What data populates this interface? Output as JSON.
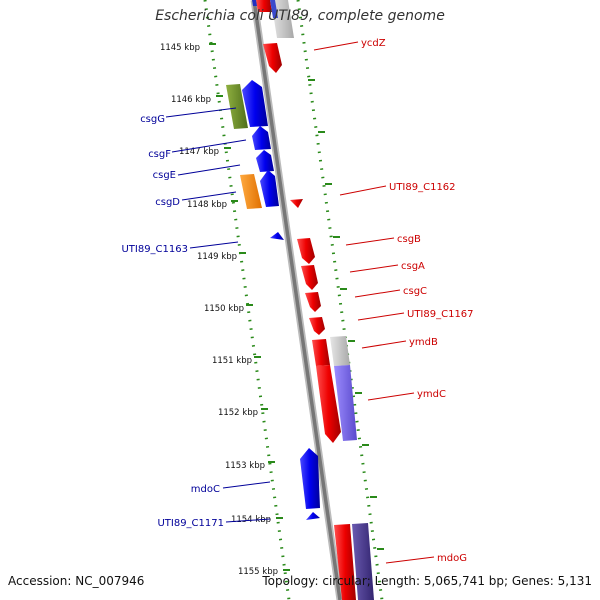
{
  "title": "Escherichia coli UTI89, complete genome",
  "footer": {
    "accession": "Accession: NC_007946",
    "topology": "Topology: circular; Length: 5,065,741 bp; Genes: 5,131"
  },
  "colors": {
    "forward_gene": "#dd0000",
    "reverse_gene": "#0000cc",
    "forward_label": "#cc0000",
    "reverse_label": "#000099",
    "ruler": "#2a8a1a",
    "backbone": "#777777",
    "green_feature": "#6b8e23",
    "orange_feature": "#ff8c00",
    "purple_feature": "#7b68ee",
    "grey_feature": "#c0c0c0"
  },
  "ruler_labels": [
    "1145 kbp",
    "1146 kbp",
    "1147 kbp",
    "1148 kbp",
    "1149 kbp",
    "1150 kbp",
    "1151 kbp",
    "1152 kbp",
    "1153 kbp",
    "1154 kbp",
    "1155 kbp"
  ],
  "reverse_genes": [
    "csgG",
    "csgF",
    "csgE",
    "csgD",
    "UTI89_C1163",
    "mdoC",
    "UTI89_C1171"
  ],
  "forward_genes": [
    "ycdZ",
    "UTI89_C1162",
    "csgB",
    "csgA",
    "csgC",
    "UTI89_C1167",
    "ymdB",
    "ymdC",
    "mdoG"
  ]
}
